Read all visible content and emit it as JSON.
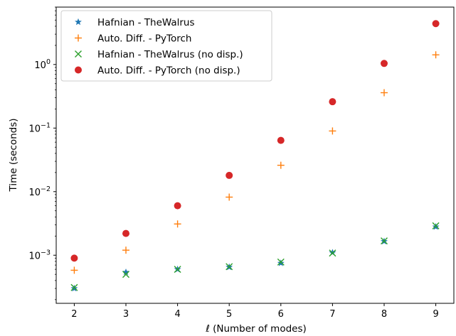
{
  "chart_data": {
    "type": "scatter",
    "title": "",
    "xlabel": "ℓ (Number of modes)",
    "ylabel": "Time (seconds)",
    "x_scale": "linear",
    "y_scale": "log",
    "xlim": [
      1.65,
      9.35
    ],
    "ylim": [
      0.000175,
      8.0
    ],
    "x_ticks": [
      2,
      3,
      4,
      5,
      6,
      7,
      8,
      9
    ],
    "y_ticks": [
      0.001,
      0.01,
      0.1,
      1
    ],
    "y_tick_labels": [
      {
        "base": "10",
        "exp": "−3"
      },
      {
        "base": "10",
        "exp": "−2"
      },
      {
        "base": "10",
        "exp": "−1"
      },
      {
        "base": "10",
        "exp": "0"
      }
    ],
    "grid": false,
    "legend_position": "upper-left",
    "series": [
      {
        "name": "Hafnian - TheWalrus",
        "marker": "star",
        "color": "#1f77b4",
        "x": [
          2,
          3,
          4,
          5,
          6,
          7,
          8,
          9
        ],
        "y": [
          0.0003,
          0.00054,
          0.0006,
          0.00065,
          0.00075,
          0.0011,
          0.00165,
          0.0028
        ]
      },
      {
        "name": "Auto. Diff. - PyTorch",
        "marker": "plus",
        "color": "#ff7f0e",
        "x": [
          2,
          3,
          4,
          5,
          6,
          7,
          8,
          9
        ],
        "y": [
          0.00058,
          0.0012,
          0.0031,
          0.0082,
          0.026,
          0.09,
          0.36,
          1.42
        ]
      },
      {
        "name": "Hafnian - TheWalrus (no disp.)",
        "marker": "x",
        "color": "#2ca02c",
        "x": [
          2,
          3,
          4,
          5,
          6,
          7,
          8,
          9
        ],
        "y": [
          0.00031,
          0.0005,
          0.0006,
          0.00066,
          0.00078,
          0.00108,
          0.00168,
          0.0029
        ]
      },
      {
        "name": "Auto. Diff. - PyTorch (no disp.)",
        "marker": "circle",
        "color": "#d62728",
        "x": [
          2,
          3,
          4,
          5,
          6,
          7,
          8,
          9
        ],
        "y": [
          0.0009,
          0.0022,
          0.006,
          0.018,
          0.064,
          0.26,
          1.04,
          4.4
        ]
      }
    ]
  }
}
